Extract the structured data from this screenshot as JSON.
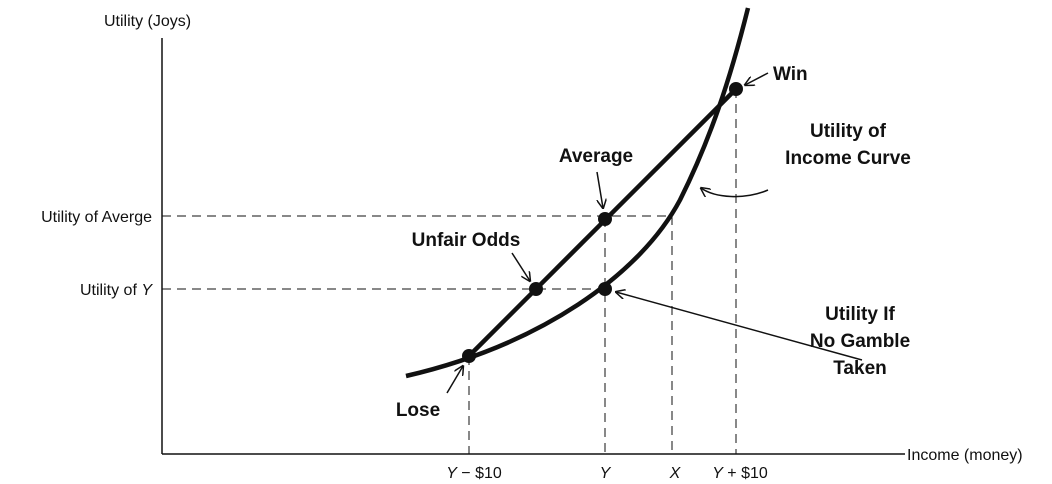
{
  "axes": {
    "y_label": "Utility (Joys)",
    "x_label": "Income (money)"
  },
  "y_ticks": {
    "average": "Utility of Averge",
    "y_prefix": "Utility of ",
    "y_var": "Y"
  },
  "x_ticks": {
    "lose_var": "Y",
    "lose_suffix": " − $10",
    "y": "Y",
    "x": "X",
    "win_var": "Y",
    "win_suffix": " + $10"
  },
  "labels": {
    "win": "Win",
    "average": "Average",
    "unfair_odds": "Unfair Odds",
    "lose": "Lose",
    "curve_line1": "Utility of",
    "curve_line2": "Income Curve",
    "no_gamble_line1": "Utility If",
    "no_gamble_line2": "No Gamble",
    "no_gamble_line3": "Taken"
  }
}
